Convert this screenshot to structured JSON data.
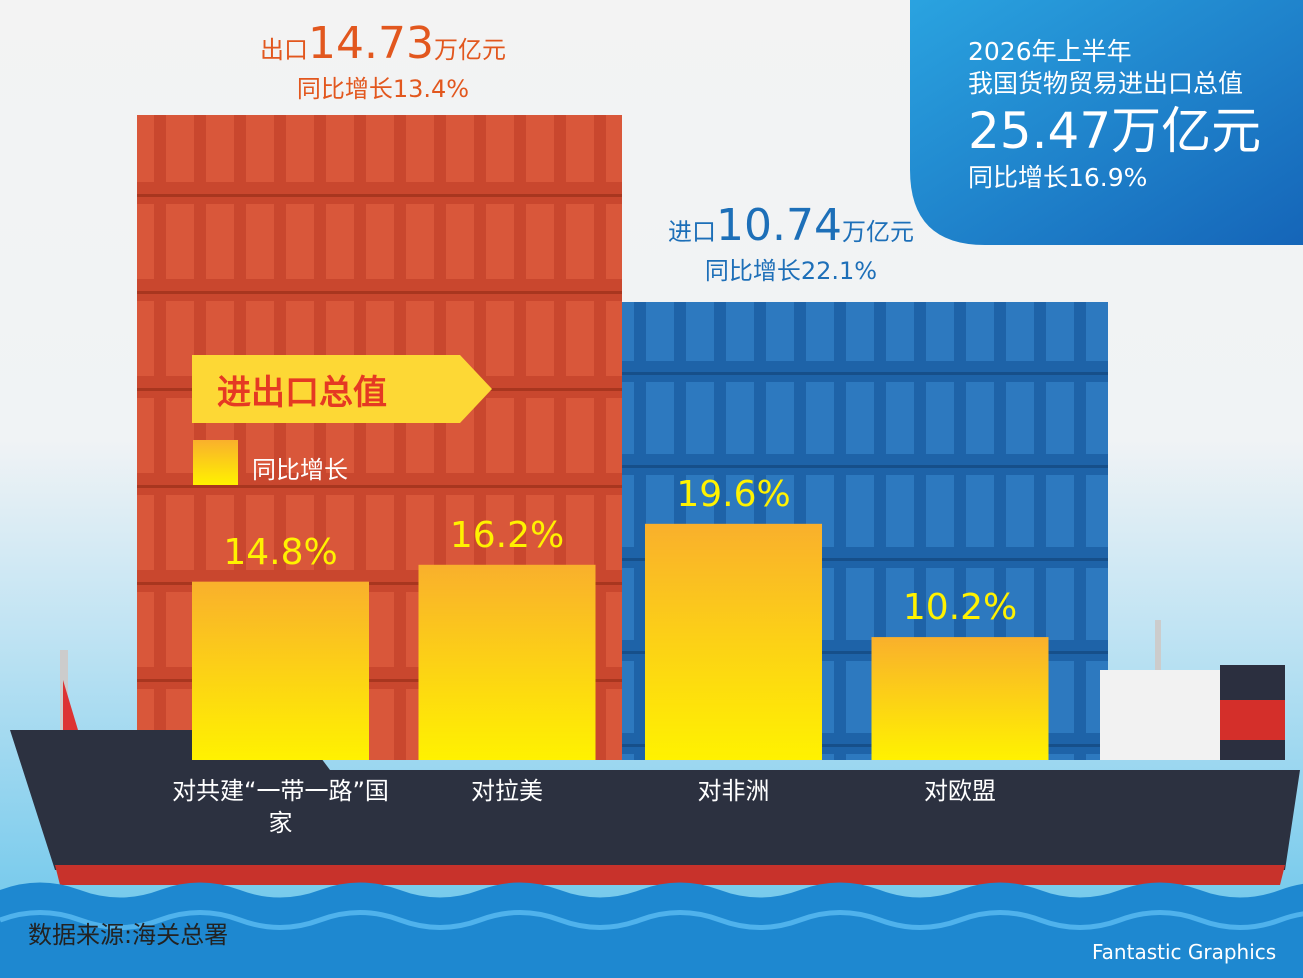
{
  "chart_data": {
    "type": "bar",
    "categories": [
      "对共建“一带一路”国家",
      "对拉美",
      "对非洲",
      "对欧盟"
    ],
    "values": [
      14.8,
      16.2,
      19.6,
      10.2
    ],
    "value_labels": [
      "14.8%",
      "16.2%",
      "19.6%",
      "10.2%"
    ],
    "color": "#fbc02d",
    "title": "进出口总值",
    "legend": "同比增长",
    "summary": {
      "period": "2026年上半年",
      "subject": "我国货物贸易进出口总值",
      "value": 25.47,
      "unit": "万亿元",
      "growth": "同比增长16.9%"
    },
    "annotations": [
      {
        "label": "出口",
        "value": 14.73,
        "unit": "万亿元",
        "growth": "同比增长13.4%"
      },
      {
        "label": "进口",
        "value": 10.74,
        "unit": "万亿元",
        "growth": "同比增长22.1%"
      }
    ],
    "source": "数据来源:海关总署",
    "credit": "Fantastic Graphics"
  }
}
